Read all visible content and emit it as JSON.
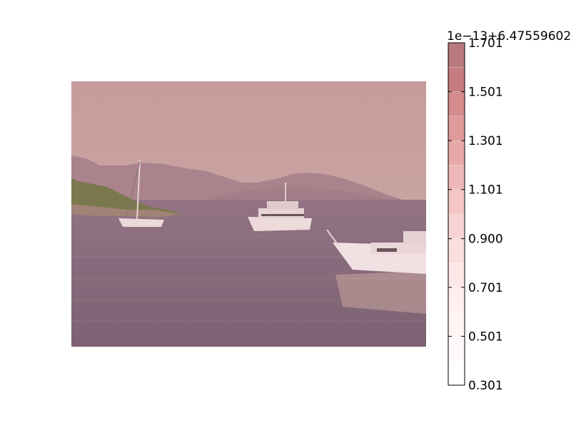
{
  "chart_data": {
    "type": "heatmap",
    "image": {
      "description_free": true,
      "sky_color": "#c7a0a0",
      "water_color": "#7a6478",
      "mountain_color": "#a38187",
      "island_color": "#6b7a3f",
      "boat_color": "#f4e6e6"
    },
    "colorbar": {
      "offset_label": "1e−13+6.47559602",
      "tick_labels": [
        "1.701",
        "1.501",
        "1.301",
        "1.101",
        "0.900",
        "0.701",
        "0.501",
        "0.301"
      ],
      "levels": [
        0.301,
        0.401,
        0.501,
        0.601,
        0.701,
        0.801,
        0.9,
        1.0,
        1.101,
        1.201,
        1.301,
        1.401,
        1.501,
        1.601,
        1.701
      ],
      "colors": [
        "#fffefe",
        "#fffafa",
        "#fff5f5",
        "#ffefef",
        "#fde8e8",
        "#fbdede",
        "#f8d3d3",
        "#f4c6c6",
        "#efb8b8",
        "#e9a8a8",
        "#e09a9a",
        "#d48b8b",
        "#c47c7e",
        "#b87a7f"
      ],
      "alpha": 0.5
    }
  }
}
